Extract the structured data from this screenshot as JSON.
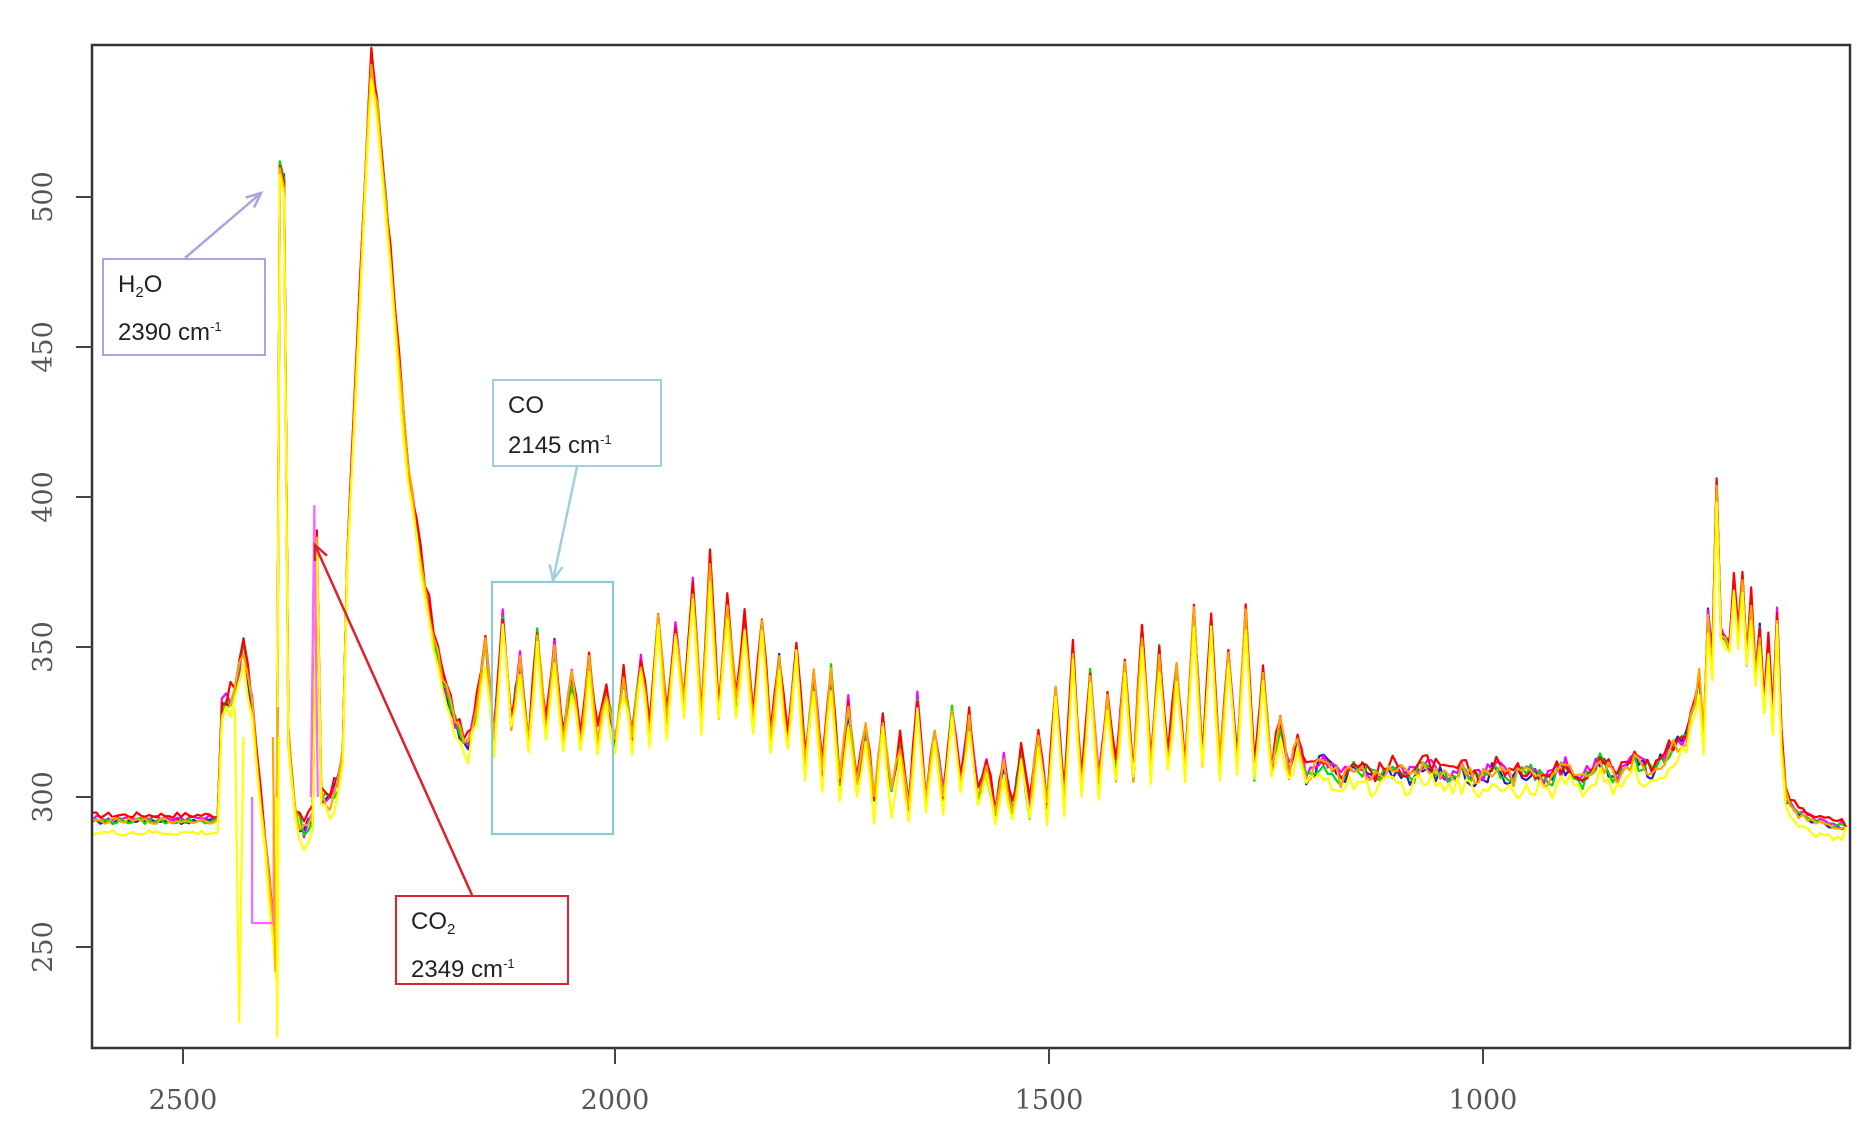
{
  "chart_data": {
    "type": "line",
    "title": "",
    "xlabel": "",
    "ylabel": "",
    "x_reversed": true,
    "xlim": [
      2605,
      575
    ],
    "ylim": [
      217,
      551
    ],
    "xticks": [
      2500,
      2000,
      1500,
      1000
    ],
    "yticks": [
      250,
      300,
      350,
      400,
      450,
      500
    ],
    "grid": false,
    "legend": null,
    "annotations": [
      {
        "species": "H2O",
        "label_main": "H",
        "label_sub": "2",
        "label_tail": "O",
        "wavenumber": "2390 cm",
        "unit_sup": "-1",
        "color": "#9a9fd6",
        "arrow_to": [
          2390,
          501
        ]
      },
      {
        "species": "CO2",
        "label_main": "CO",
        "label_sub": "2",
        "label_tail": "",
        "wavenumber": "2349 cm",
        "unit_sup": "-1",
        "color": "#e0202a",
        "arrow_to": [
          2349,
          385
        ]
      },
      {
        "species": "CO",
        "label_main": "CO",
        "label_sub": "",
        "label_tail": "",
        "wavenumber": "2145 cm",
        "unit_sup": "-1",
        "color": "#8fc8d8",
        "arrow_to": [
          2070,
          372
        ],
        "region": {
          "x": [
            2140,
            2000
          ],
          "y": [
            287,
            371
          ]
        }
      }
    ],
    "series": [
      {
        "name": "s1",
        "color": "#ff0000"
      },
      {
        "name": "s2",
        "color": "#ff00ff"
      },
      {
        "name": "s3",
        "color": "#00dd00"
      },
      {
        "name": "s4",
        "color": "#2020c0"
      },
      {
        "name": "s5",
        "color": "#ffa500"
      },
      {
        "name": "s6",
        "color": "#ffff00"
      }
    ],
    "envelope_points": [
      [
        2605,
        292
      ],
      [
        2460,
        292
      ],
      [
        2455,
        330
      ],
      [
        2440,
        335
      ],
      [
        2430,
        350
      ],
      [
        2420,
        330
      ],
      [
        2410,
        300
      ],
      [
        2400,
        270
      ],
      [
        2392,
        245
      ],
      [
        2388,
        510
      ],
      [
        2383,
        505
      ],
      [
        2378,
        320
      ],
      [
        2370,
        295
      ],
      [
        2360,
        288
      ],
      [
        2350,
        293
      ],
      [
        2345,
        385
      ],
      [
        2340,
        300
      ],
      [
        2330,
        298
      ],
      [
        2320,
        305
      ],
      [
        2315,
        315
      ],
      [
        2310,
        380
      ],
      [
        2300,
        440
      ],
      [
        2290,
        500
      ],
      [
        2282,
        545
      ],
      [
        2275,
        530
      ],
      [
        2260,
        480
      ],
      [
        2240,
        410
      ],
      [
        2220,
        370
      ],
      [
        2200,
        340
      ],
      [
        2185,
        325
      ],
      [
        2170,
        317
      ],
      [
        2160,
        330
      ],
      [
        2150,
        350
      ],
      [
        2140,
        320
      ],
      [
        2130,
        360
      ],
      [
        2120,
        325
      ],
      [
        2110,
        345
      ],
      [
        2100,
        318
      ],
      [
        2090,
        355
      ],
      [
        2080,
        322
      ],
      [
        2070,
        350
      ],
      [
        2060,
        320
      ],
      [
        2050,
        340
      ],
      [
        2040,
        318
      ],
      [
        2030,
        345
      ],
      [
        2020,
        320
      ],
      [
        2010,
        335
      ],
      [
        2000,
        318
      ],
      [
        1990,
        340
      ],
      [
        1980,
        320
      ],
      [
        1970,
        345
      ],
      [
        1960,
        322
      ],
      [
        1950,
        360
      ],
      [
        1940,
        325
      ],
      [
        1930,
        355
      ],
      [
        1920,
        330
      ],
      [
        1910,
        370
      ],
      [
        1900,
        325
      ],
      [
        1890,
        378
      ],
      [
        1880,
        328
      ],
      [
        1870,
        365
      ],
      [
        1860,
        330
      ],
      [
        1850,
        358
      ],
      [
        1840,
        325
      ],
      [
        1830,
        360
      ],
      [
        1820,
        320
      ],
      [
        1810,
        345
      ],
      [
        1800,
        318
      ],
      [
        1790,
        350
      ],
      [
        1780,
        312
      ],
      [
        1770,
        340
      ],
      [
        1760,
        308
      ],
      [
        1750,
        342
      ],
      [
        1740,
        305
      ],
      [
        1730,
        330
      ],
      [
        1720,
        302
      ],
      [
        1710,
        322
      ],
      [
        1700,
        298
      ],
      [
        1690,
        325
      ],
      [
        1680,
        300
      ],
      [
        1670,
        318
      ],
      [
        1660,
        296
      ],
      [
        1650,
        332
      ],
      [
        1640,
        298
      ],
      [
        1630,
        320
      ],
      [
        1620,
        300
      ],
      [
        1610,
        328
      ],
      [
        1600,
        305
      ],
      [
        1590,
        325
      ],
      [
        1580,
        300
      ],
      [
        1570,
        310
      ],
      [
        1560,
        296
      ],
      [
        1550,
        312
      ],
      [
        1540,
        294
      ],
      [
        1530,
        315
      ],
      [
        1520,
        295
      ],
      [
        1510,
        322
      ],
      [
        1500,
        297
      ],
      [
        1490,
        335
      ],
      [
        1480,
        300
      ],
      [
        1470,
        348
      ],
      [
        1460,
        303
      ],
      [
        1450,
        340
      ],
      [
        1440,
        305
      ],
      [
        1430,
        332
      ],
      [
        1420,
        308
      ],
      [
        1410,
        345
      ],
      [
        1400,
        308
      ],
      [
        1390,
        355
      ],
      [
        1380,
        310
      ],
      [
        1370,
        348
      ],
      [
        1360,
        312
      ],
      [
        1350,
        342
      ],
      [
        1340,
        310
      ],
      [
        1330,
        362
      ],
      [
        1320,
        312
      ],
      [
        1310,
        358
      ],
      [
        1300,
        310
      ],
      [
        1290,
        348
      ],
      [
        1280,
        312
      ],
      [
        1270,
        360
      ],
      [
        1260,
        308
      ],
      [
        1250,
        340
      ],
      [
        1240,
        310
      ],
      [
        1230,
        325
      ],
      [
        1220,
        308
      ],
      [
        1210,
        320
      ],
      [
        1200,
        307
      ],
      [
        1180,
        312
      ],
      [
        1160,
        306
      ],
      [
        1140,
        310
      ],
      [
        1120,
        306
      ],
      [
        1100,
        309
      ],
      [
        1080,
        307
      ],
      [
        1060,
        310
      ],
      [
        1040,
        306
      ],
      [
        1020,
        308
      ],
      [
        1000,
        306
      ],
      [
        980,
        309
      ],
      [
        960,
        306
      ],
      [
        940,
        308
      ],
      [
        920,
        305
      ],
      [
        900,
        310
      ],
      [
        880,
        305
      ],
      [
        860,
        312
      ],
      [
        840,
        306
      ],
      [
        820,
        312
      ],
      [
        800,
        308
      ],
      [
        780,
        315
      ],
      [
        760,
        320
      ],
      [
        750,
        330
      ],
      [
        745,
        340
      ],
      [
        740,
        318
      ],
      [
        735,
        360
      ],
      [
        730,
        345
      ],
      [
        725,
        403
      ],
      [
        720,
        355
      ],
      [
        710,
        350
      ],
      [
        705,
        370
      ],
      [
        700,
        355
      ],
      [
        695,
        372
      ],
      [
        690,
        345
      ],
      [
        685,
        365
      ],
      [
        680,
        340
      ],
      [
        675,
        355
      ],
      [
        670,
        330
      ],
      [
        665,
        350
      ],
      [
        660,
        325
      ],
      [
        655,
        360
      ],
      [
        650,
        320
      ],
      [
        645,
        300
      ],
      [
        630,
        294
      ],
      [
        605,
        291
      ],
      [
        575,
        290
      ]
    ]
  },
  "axes": {
    "x_tick_labels": [
      "2500",
      "2000",
      "1500",
      "1000"
    ],
    "y_tick_labels": [
      "250",
      "300",
      "350",
      "400",
      "450",
      "500"
    ]
  },
  "annotation_labels": {
    "h2o": {
      "main": "H",
      "sub": "2",
      "tail": "O",
      "value": "2390 cm",
      "sup": "-1"
    },
    "co2": {
      "main": "CO",
      "sub": "2",
      "tail": "",
      "value": "2349 cm",
      "sup": "-1"
    },
    "co": {
      "main": "CO",
      "sub": "",
      "tail": "",
      "value": "2145 cm",
      "sup": "-1"
    }
  }
}
